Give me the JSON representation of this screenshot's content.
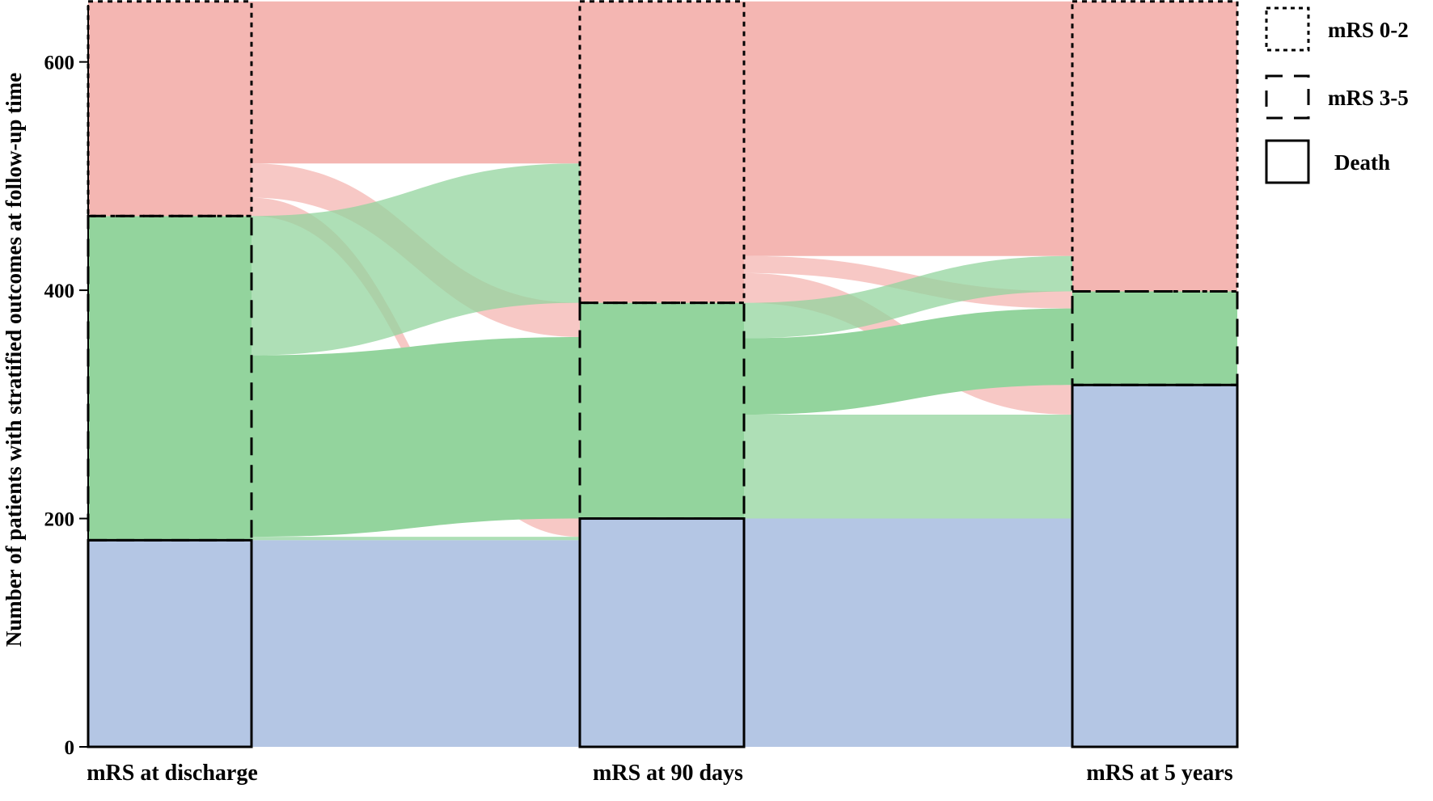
{
  "chart_data": {
    "type": "alluvial",
    "title": "",
    "ylabel": "Number of patients with stratified outcomes at follow-up time",
    "xlabel": "",
    "ylim": [
      0,
      650
    ],
    "yticks": [
      0,
      200,
      400,
      600
    ],
    "stages": [
      "mRS at discharge",
      "mRS at 90 days",
      "mRS at 5 years"
    ],
    "categories": [
      {
        "key": "mrs02",
        "name": "mRS 0-2",
        "border": "dotted",
        "color": "#f4b6b2"
      },
      {
        "key": "mrs35",
        "name": "mRS 3-5",
        "border": "dashed",
        "color": "#93d49d"
      },
      {
        "key": "death",
        "name": "Death",
        "border": "solid",
        "color": "#b4c6e4"
      }
    ],
    "stage_totals": [
      {
        "mrs02": 188,
        "mrs35": 284,
        "death": 181
      },
      {
        "mrs02": 264,
        "mrs35": 189,
        "death": 200
      },
      {
        "mrs02": 254,
        "mrs35": 82,
        "death": 317
      }
    ],
    "flows_discharge_to_90days": [
      {
        "from": "mrs02",
        "to": "mrs02",
        "value": 142
      },
      {
        "from": "mrs02",
        "to": "mrs35",
        "value": 30
      },
      {
        "from": "mrs02",
        "to": "death",
        "value": 16
      },
      {
        "from": "mrs35",
        "to": "mrs02",
        "value": 122
      },
      {
        "from": "mrs35",
        "to": "mrs35",
        "value": 159
      },
      {
        "from": "mrs35",
        "to": "death",
        "value": 3
      },
      {
        "from": "death",
        "to": "death",
        "value": 181
      }
    ],
    "flows_90days_to_5years": [
      {
        "from": "mrs02",
        "to": "mrs02",
        "value": 223
      },
      {
        "from": "mrs02",
        "to": "mrs35",
        "value": 15
      },
      {
        "from": "mrs02",
        "to": "death",
        "value": 26
      },
      {
        "from": "mrs35",
        "to": "mrs02",
        "value": 31
      },
      {
        "from": "mrs35",
        "to": "mrs35",
        "value": 67
      },
      {
        "from": "mrs35",
        "to": "death",
        "value": 91
      },
      {
        "from": "death",
        "to": "death",
        "value": 200
      }
    ]
  }
}
